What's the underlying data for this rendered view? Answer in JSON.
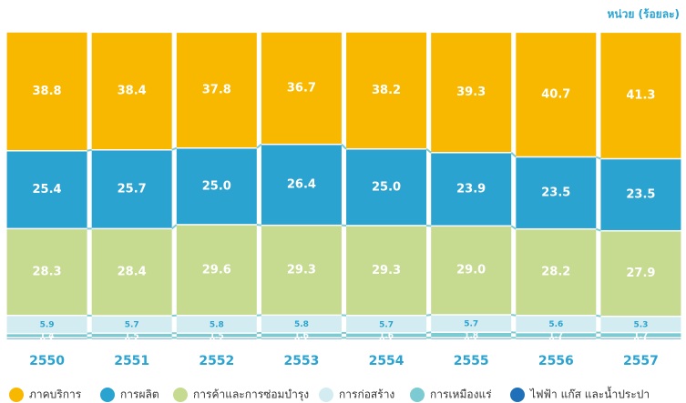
{
  "chart_data": {
    "type": "stacked_bar_percent",
    "title": "หน่วย (ร้อยละ)",
    "categories": [
      "2550",
      "2551",
      "2552",
      "2553",
      "2554",
      "2555",
      "2556",
      "2557"
    ],
    "ylim": [
      0,
      100
    ],
    "series": [
      {
        "name": "ไฟฟ้า แก๊ส และน้ำประปา",
        "color": "#1f70b8",
        "values": [
          0.2,
          0.2,
          0.2,
          0.2,
          0.2,
          0.2,
          0.2,
          0.2
        ]
      },
      {
        "name": "การเหมืองแร่",
        "color": "#7ccbd2",
        "values": [
          1.4,
          1.5,
          1.5,
          1.6,
          1.6,
          1.8,
          1.7,
          1.7
        ]
      },
      {
        "name": "การก่อสร้าง",
        "color": "#d3ecf1",
        "values": [
          5.9,
          5.7,
          5.8,
          5.8,
          5.7,
          5.7,
          5.6,
          5.3
        ]
      },
      {
        "name": "การค้าและการซ่อมบำรุง",
        "color": "#c6da90",
        "values": [
          28.3,
          28.4,
          29.6,
          29.3,
          29.3,
          29.0,
          28.2,
          27.9
        ],
        "value_labels": [
          "28.3",
          "28.4",
          "29.6",
          "29.3",
          "29.3",
          "29.0",
          "28.2",
          "27.9"
        ]
      },
      {
        "name": "การผลิต",
        "color": "#2aa3d1",
        "values": [
          25.4,
          25.7,
          25.0,
          26.4,
          25.0,
          23.9,
          23.5,
          23.5
        ],
        "value_labels": [
          "25.4",
          "25.7",
          "25.0",
          "26.4",
          "25.0",
          "23.9",
          "23.5",
          "23.5"
        ]
      },
      {
        "name": "ภาคบริการ",
        "color": "#f9b800",
        "values": [
          38.8,
          38.4,
          37.8,
          36.7,
          38.2,
          39.3,
          40.7,
          41.3
        ]
      }
    ],
    "legend_order": [
      5,
      4,
      3,
      2,
      1,
      0
    ]
  }
}
